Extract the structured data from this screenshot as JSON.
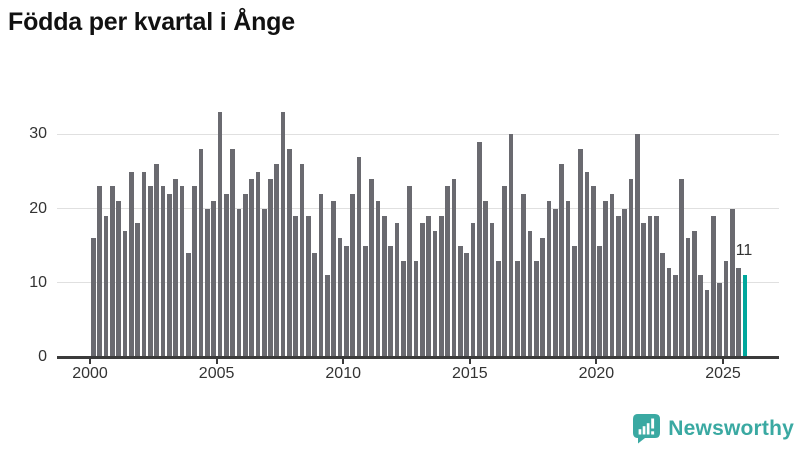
{
  "title": "Födda per kvartal i Ånge",
  "brand": {
    "name": "Newsworthy",
    "icon": "newsworthy-speech-bubble-chart-icon"
  },
  "colors": {
    "bar": "#6a6a70",
    "highlight": "#00a79c",
    "axis": "#3b3b3b",
    "grid": "#e0e0e0",
    "tick_text": "#333333",
    "title_text": "#111111",
    "annotation_text": "#333333",
    "brand_teal": "#3aa9a2",
    "background": "#ffffff"
  },
  "chart_data": {
    "type": "bar",
    "title": "Födda per kvartal i Ånge",
    "xlabel": "",
    "ylabel": "",
    "frequency": "quarterly",
    "start_year": 2000,
    "ylim": [
      0,
      33
    ],
    "grid": true,
    "y_tick_labels": [
      "0",
      "10",
      "20",
      "30"
    ],
    "y_tick_values": [
      0,
      10,
      20,
      30
    ],
    "x_tick_labels": [
      "2000",
      "2005",
      "2010",
      "2015",
      "2020",
      "2025"
    ],
    "highlight_last_bar": true,
    "last_value_label": "11",
    "values": [
      16,
      23,
      19,
      23,
      21,
      17,
      25,
      18,
      25,
      23,
      26,
      23,
      22,
      24,
      23,
      14,
      23,
      28,
      20,
      21,
      33,
      22,
      28,
      20,
      22,
      24,
      25,
      20,
      24,
      26,
      33,
      28,
      19,
      26,
      19,
      14,
      22,
      11,
      21,
      16,
      15,
      22,
      27,
      15,
      24,
      21,
      19,
      15,
      18,
      13,
      23,
      13,
      18,
      19,
      17,
      19,
      23,
      24,
      15,
      14,
      18,
      29,
      21,
      18,
      13,
      23,
      30,
      13,
      22,
      17,
      13,
      16,
      21,
      20,
      26,
      21,
      15,
      28,
      25,
      23,
      15,
      21,
      22,
      19,
      20,
      24,
      30,
      18,
      19,
      19,
      14,
      12,
      11,
      24,
      16,
      17,
      11,
      9,
      19,
      10,
      13,
      20,
      12,
      11
    ]
  }
}
